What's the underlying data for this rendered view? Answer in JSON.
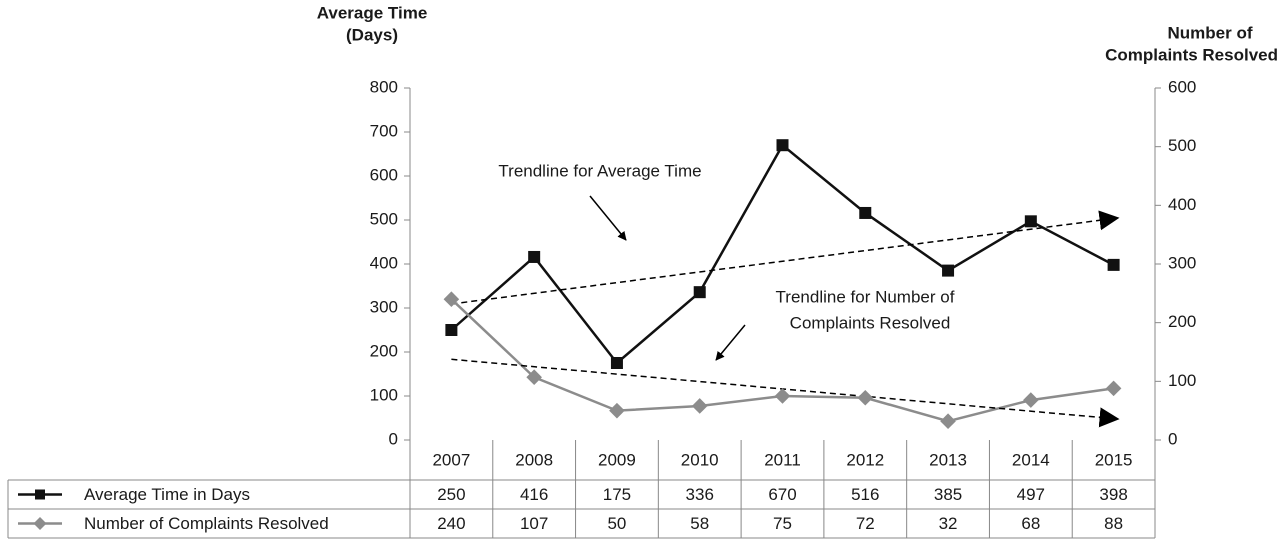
{
  "chart_data": {
    "type": "line",
    "ylabel": [
      "Average Time",
      "(Days)"
    ],
    "y2label": [
      "Number of",
      "Complaints Resolved"
    ],
    "categories": [
      "2007",
      "2008",
      "2009",
      "2010",
      "2011",
      "2012",
      "2013",
      "2014",
      "2015"
    ],
    "series": [
      {
        "name": "Average Time in Days",
        "color": "#111111",
        "marker": "square",
        "trendline": "linear",
        "values": [
          250,
          416,
          175,
          336,
          670,
          516,
          385,
          497,
          398
        ]
      },
      {
        "name": "Number of Complaints Resolved",
        "color": "#8c8c8c",
        "marker": "diamond",
        "axis": "y2",
        "trendline": "linear",
        "values": [
          240,
          107,
          50,
          58,
          75,
          72,
          32,
          68,
          88
        ]
      }
    ],
    "ylim": [
      0,
      800
    ],
    "yticks": [
      0,
      100,
      200,
      300,
      400,
      500,
      600,
      700,
      800
    ],
    "y2lim": [
      0,
      600
    ],
    "y2ticks": [
      0,
      100,
      200,
      300,
      400,
      500,
      600
    ],
    "annotations": [
      [
        "Trendline for Average Time"
      ],
      [
        "Trendline for Number of",
        "Complaints Resolved"
      ]
    ],
    "data_table": true
  }
}
